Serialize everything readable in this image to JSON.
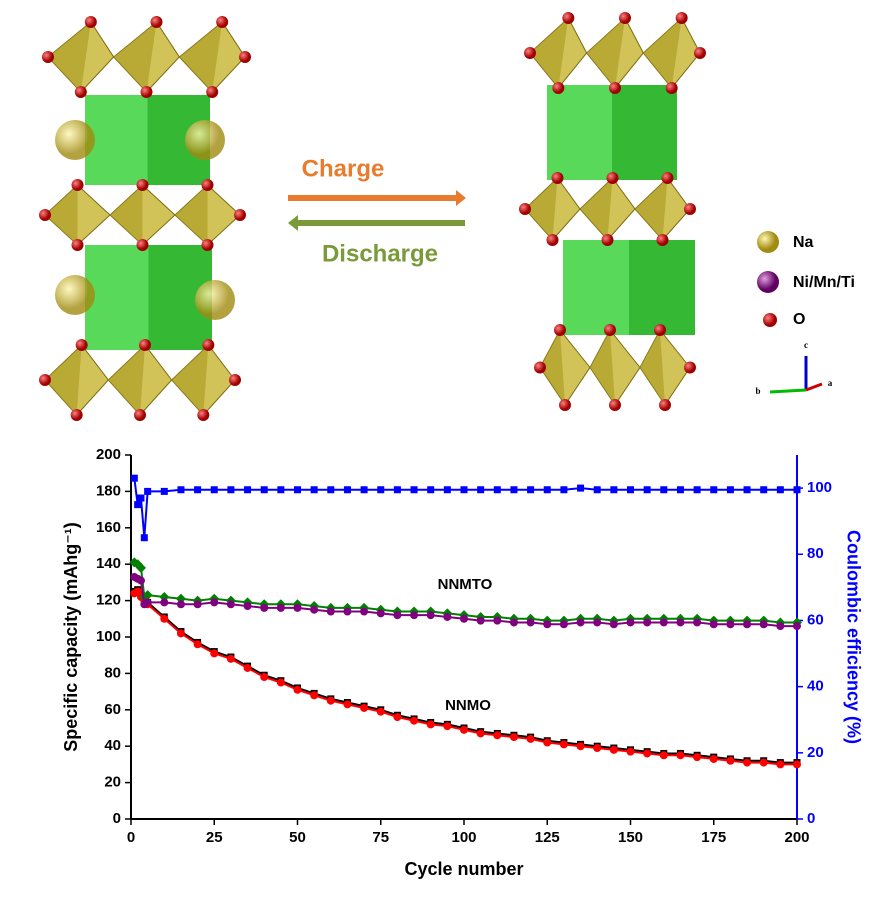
{
  "structure": {
    "charge": "Charge",
    "discharge": "Discharge",
    "legend": [
      "Na",
      "Ni/Mn/Ti",
      "O"
    ],
    "axes": [
      "c",
      "b",
      "a"
    ]
  },
  "chart_data": {
    "type": "line",
    "xlabel": "Cycle number",
    "ylabel": "Specific capacity (mAhg⁻¹)",
    "y2label": "Coulombic efficiency (%)",
    "annotations": [
      "NNMTO",
      "NNMO"
    ],
    "x": [
      1,
      2,
      3,
      4,
      5,
      10,
      15,
      20,
      25,
      30,
      35,
      40,
      45,
      50,
      55,
      60,
      65,
      70,
      75,
      80,
      85,
      90,
      95,
      100,
      105,
      110,
      115,
      120,
      125,
      130,
      135,
      140,
      145,
      150,
      155,
      160,
      165,
      170,
      175,
      180,
      185,
      190,
      195,
      200
    ],
    "xlim": [
      0,
      200
    ],
    "xticks": [
      0,
      25,
      50,
      75,
      100,
      125,
      150,
      175,
      200
    ],
    "ylim": [
      0,
      200
    ],
    "yticks": [
      0,
      20,
      40,
      60,
      80,
      100,
      120,
      140,
      160,
      180,
      200
    ],
    "y2lim": [
      0,
      110
    ],
    "y2ticks": [
      0,
      20,
      40,
      60,
      80,
      100
    ],
    "series": [
      {
        "color": "#000000",
        "marker": "square",
        "values": [
          125,
          126,
          123,
          121,
          119,
          111,
          103,
          97,
          92,
          89,
          84,
          79,
          76,
          72,
          69,
          66,
          64,
          62,
          60,
          57,
          55,
          53,
          52,
          50,
          48,
          47,
          46,
          45,
          43,
          42,
          41,
          40,
          39,
          38,
          37,
          36,
          36,
          35,
          34,
          33,
          32,
          32,
          31,
          31
        ]
      },
      {
        "color": "#ff0000",
        "marker": "circle",
        "values": [
          124,
          125,
          122,
          120,
          118,
          110,
          102,
          96,
          91,
          88,
          83,
          78,
          75,
          71,
          68,
          65,
          63,
          61,
          59,
          56,
          54,
          52,
          51,
          49,
          47,
          46,
          45,
          44,
          42,
          41,
          40,
          39,
          38,
          37,
          36,
          35,
          35,
          34,
          33,
          32,
          31,
          31,
          30,
          30
        ]
      },
      {
        "color": "#008000",
        "marker": "diamond",
        "values": [
          141,
          140,
          138,
          122,
          123,
          122,
          121,
          120,
          121,
          120,
          119,
          118,
          118,
          118,
          117,
          116,
          116,
          116,
          115,
          114,
          114,
          114,
          113,
          112,
          111,
          111,
          110,
          110,
          109,
          109,
          110,
          110,
          109,
          110,
          110,
          110,
          110,
          110,
          109,
          109,
          109,
          109,
          108,
          108
        ]
      },
      {
        "color": "#800080",
        "marker": "circle",
        "values": [
          133,
          132,
          131,
          118,
          119,
          119,
          118,
          118,
          119,
          118,
          117,
          116,
          116,
          116,
          115,
          114,
          114,
          114,
          113,
          112,
          112,
          112,
          111,
          110,
          109,
          109,
          108,
          108,
          107,
          107,
          108,
          108,
          107,
          108,
          108,
          108,
          108,
          108,
          107,
          107,
          107,
          107,
          106,
          106
        ]
      },
      {
        "color": "#0000ff",
        "marker": "square",
        "axis": "y2",
        "values": [
          103,
          95,
          97,
          85,
          99,
          99,
          99.5,
          99.5,
          99.5,
          99.5,
          99.5,
          99.5,
          99.5,
          99.5,
          99.5,
          99.5,
          99.5,
          99.5,
          99.5,
          99.5,
          99.5,
          99.5,
          99.5,
          99.5,
          99.5,
          99.5,
          99.5,
          99.5,
          99.5,
          99.5,
          100,
          99.5,
          99.5,
          99.5,
          99.5,
          99.5,
          99.5,
          99.5,
          99.5,
          99.5,
          99.5,
          99.5,
          99.5,
          99.5
        ]
      }
    ]
  }
}
